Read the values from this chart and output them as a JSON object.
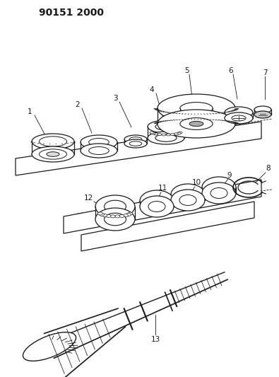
{
  "title": "90151 2000",
  "bg_color": "#ffffff",
  "line_color": "#1a1a1a",
  "label_fontsize": 7.5,
  "title_fontsize": 10,
  "title_fontweight": "bold"
}
